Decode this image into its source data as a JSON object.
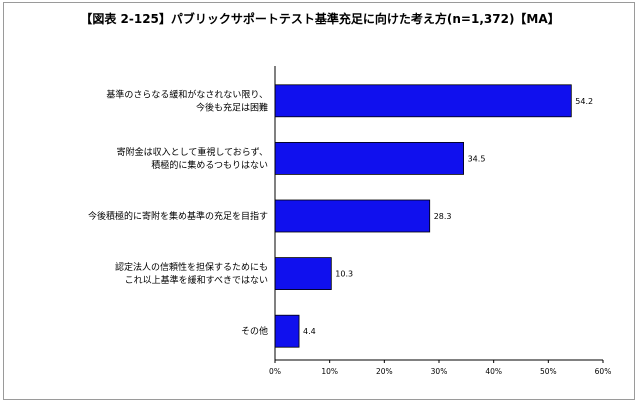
{
  "chart_data": {
    "type": "bar",
    "orientation": "horizontal",
    "title": "【図表 2-125】パブリックサポートテスト基準充足に向けた考え方(n=1,372)【MA】",
    "categories": [
      [
        "基準のさらなる緩和がなされない限り、",
        "今後も充足は困難"
      ],
      [
        "寄附金は収入として重視しておらず、",
        "積極的に集めるつもりはない"
      ],
      [
        "今後積極的に寄附を集め基準の充足を目指す"
      ],
      [
        "認定法人の信頼性を担保するためにも",
        "これ以上基準を緩和すべきではない"
      ],
      [
        "その他"
      ]
    ],
    "values": [
      54.2,
      34.5,
      28.3,
      10.3,
      4.4
    ],
    "value_labels": [
      "54.2",
      "34.5",
      "28.3",
      "10.3",
      "4.4"
    ],
    "xlim": [
      0,
      60
    ],
    "xticks": [
      "0%",
      "10%",
      "20%",
      "30%",
      "40%",
      "50%",
      "60%"
    ],
    "bar_color": "#1010ee",
    "grid": false,
    "legend": "none"
  }
}
